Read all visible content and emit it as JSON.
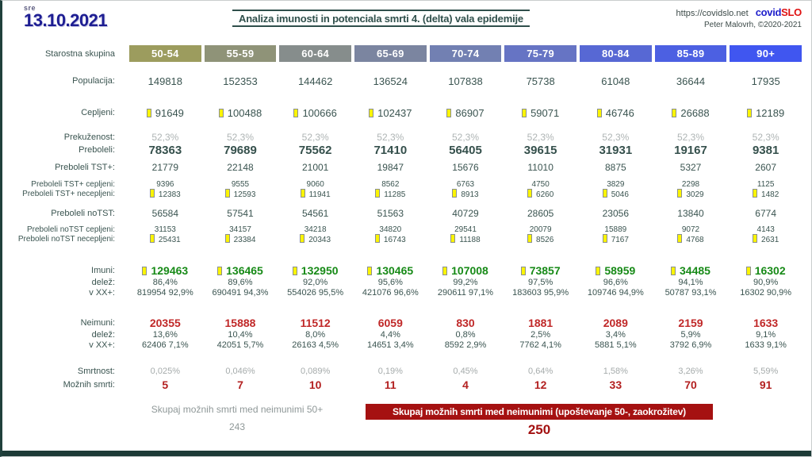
{
  "page": {
    "weekday": "sre",
    "date": "13.10.2021",
    "site_url": "https://covidslo.net",
    "brand_covid": "covid",
    "brand_slo": "SLO",
    "author": "Peter Malovrh, ©2020-2021"
  },
  "chart_data": {
    "type": "table",
    "title": "Analiza imunosti in potenciala smrti 4. (delta) vala epidemije",
    "group_label": "Starostna skupina",
    "age_groups": [
      {
        "label": "50-54",
        "color": "#9c9c5e"
      },
      {
        "label": "55-59",
        "color": "#8f9378"
      },
      {
        "label": "60-64",
        "color": "#868d8c"
      },
      {
        "label": "65-69",
        "color": "#7b85a0"
      },
      {
        "label": "70-74",
        "color": "#7280b2"
      },
      {
        "label": "75-79",
        "color": "#6674c4"
      },
      {
        "label": "80-84",
        "color": "#5768d4"
      },
      {
        "label": "85-89",
        "color": "#4c60e2"
      },
      {
        "label": "90+",
        "color": "#4056f0"
      }
    ],
    "rows": [
      {
        "label": "Populacija:",
        "cls": "r-main mt16",
        "icon": false,
        "values": [
          "149818",
          "152353",
          "144462",
          "136524",
          "107838",
          "75738",
          "61048",
          "36644",
          "17935"
        ]
      },
      {
        "label": "Cepljeni:",
        "cls": "r-main mt24",
        "icon": true,
        "values": [
          "91649",
          "100488",
          "100666",
          "102437",
          "86907",
          "59071",
          "46746",
          "26688",
          "12189"
        ]
      },
      {
        "label": "Prekuženost:",
        "cls": "r-gray mt16",
        "icon": false,
        "values": [
          "52,3%",
          "52,3%",
          "52,3%",
          "52,3%",
          "52,3%",
          "52,3%",
          "52,3%",
          "52,3%",
          "52,3%"
        ]
      },
      {
        "label": "Preboleli:",
        "cls": "r-bold",
        "icon": false,
        "values": [
          "78363",
          "79689",
          "75562",
          "71410",
          "56405",
          "39615",
          "31931",
          "19167",
          "9381"
        ]
      },
      {
        "label": "Preboleli TST+:",
        "cls": "r-mid mt6",
        "icon": false,
        "values": [
          "21779",
          "22148",
          "21001",
          "19847",
          "15676",
          "11010",
          "8875",
          "5327",
          "2607"
        ]
      },
      {
        "label": "Preboleli TST+ cepljeni:",
        "cls": "r-small mt8",
        "icon": false,
        "values": [
          "9396",
          "9555",
          "9060",
          "8562",
          "6763",
          "4750",
          "3829",
          "2298",
          "1125"
        ]
      },
      {
        "label": "Preboleli TST+ necepljeni:",
        "cls": "r-small",
        "icon": true,
        "values": [
          "12383",
          "12593",
          "11941",
          "11285",
          "8913",
          "6260",
          "5046",
          "3029",
          "1482"
        ]
      },
      {
        "label": "Preboleli noTST:",
        "cls": "r-mid mt12",
        "icon": false,
        "values": [
          "56584",
          "57541",
          "54561",
          "51563",
          "40729",
          "28605",
          "23056",
          "13840",
          "6774"
        ]
      },
      {
        "label": "Preboleli noTST cepljeni:",
        "cls": "r-small mt7",
        "icon": false,
        "values": [
          "31153",
          "34157",
          "34218",
          "34820",
          "29541",
          "20079",
          "15889",
          "9072",
          "4143"
        ]
      },
      {
        "label": "Preboleli noTST necepljeni:",
        "cls": "r-small",
        "icon": true,
        "values": [
          "25431",
          "23384",
          "20343",
          "16743",
          "11188",
          "8526",
          "7167",
          "4768",
          "2631"
        ]
      },
      {
        "label": "Imuni:",
        "cls": "r-green mt26",
        "icon": true,
        "values": [
          "129463",
          "136465",
          "132950",
          "130465",
          "107008",
          "73857",
          "58959",
          "34485",
          "16302"
        ]
      },
      {
        "label": "delež:",
        "cls": "r-pct",
        "icon": false,
        "values": [
          "86,4%",
          "89,6%",
          "92,0%",
          "95,6%",
          "99,2%",
          "97,5%",
          "96,6%",
          "94,1%",
          "90,9%"
        ]
      },
      {
        "label": "v XX+:",
        "cls": "r-pct",
        "icon": false,
        "values": [
          "819954 92,9%",
          "690491 94,3%",
          "554026 95,5%",
          "421076 96,6%",
          "290611 97,1%",
          "183603 95,9%",
          "109746 94,9%",
          "50787 93,1%",
          "16302 90,9%"
        ]
      },
      {
        "label": "Neimuni:",
        "cls": "r-red mt24",
        "icon": false,
        "values": [
          "20355",
          "15888",
          "11512",
          "6059",
          "830",
          "1881",
          "2089",
          "2159",
          "1633"
        ]
      },
      {
        "label": "delež:",
        "cls": "r-pct",
        "icon": false,
        "values": [
          "13,6%",
          "10,4%",
          "8,0%",
          "4,4%",
          "0,8%",
          "2,5%",
          "3,4%",
          "5,9%",
          "9,1%"
        ]
      },
      {
        "label": "v XX+:",
        "cls": "r-pct",
        "icon": false,
        "values": [
          "62406 7,1%",
          "42051 5,7%",
          "26163 4,5%",
          "14651 3,4%",
          "8592 2,9%",
          "7762 4,1%",
          "5881 5,1%",
          "3792 6,9%",
          "1633 9,1%"
        ]
      },
      {
        "label": "Smrtnost:",
        "cls": "r-gray2 mt20",
        "icon": false,
        "values": [
          "0,025%",
          "0,046%",
          "0,089%",
          "0,19%",
          "0,45%",
          "0,64%",
          "1,58%",
          "3,26%",
          "5,59%"
        ]
      },
      {
        "label": "Možnih smrti:",
        "cls": "r-deaths mt2",
        "icon": false,
        "values": [
          "5",
          "7",
          "10",
          "11",
          "4",
          "12",
          "33",
          "70",
          "91"
        ]
      }
    ]
  },
  "footer": {
    "left_label": "Skupaj možnih smrti med neimunimi 50+",
    "left_value": "243",
    "banner_label": "Skupaj možnih smrti med neimunimi (upoštevanje 50-, zaokrožitev)",
    "banner_value": "250"
  }
}
